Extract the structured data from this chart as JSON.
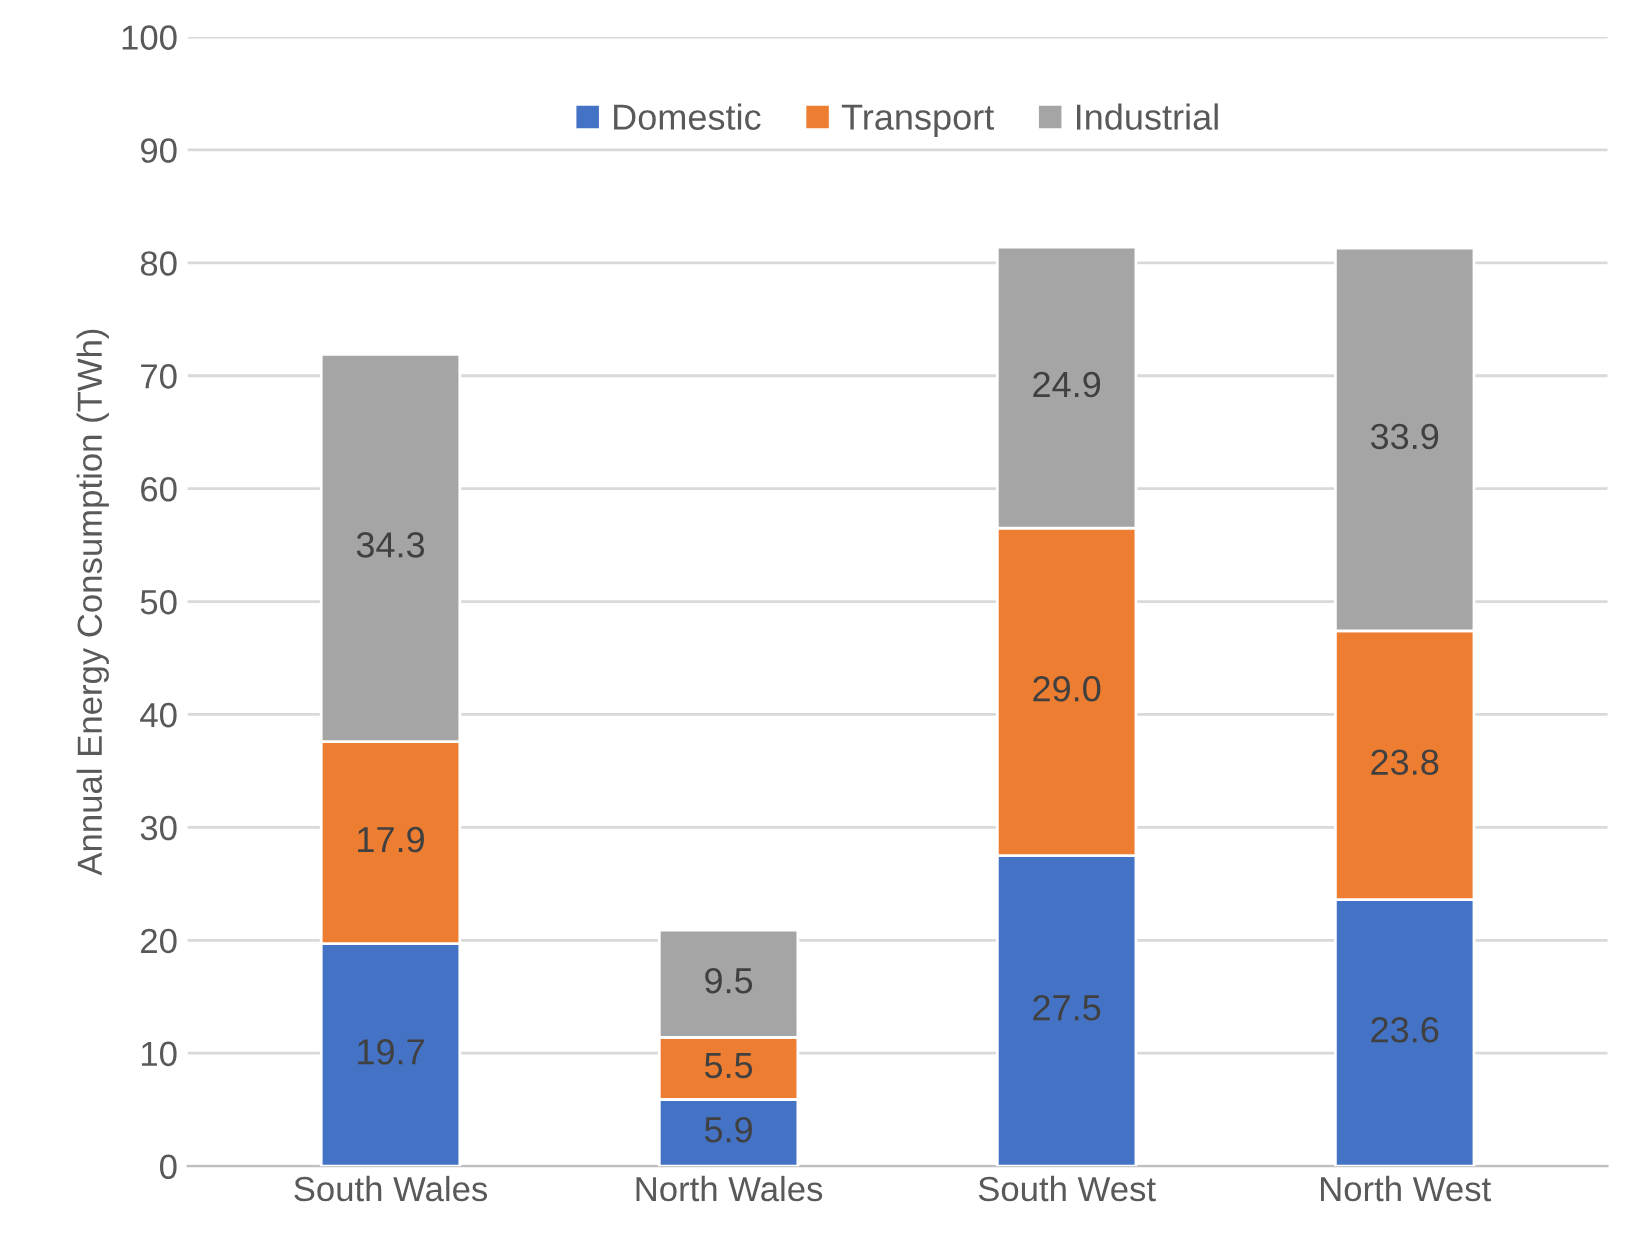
{
  "chart_data": {
    "type": "bar",
    "stacked": true,
    "ylabel": "Annual Energy Consumption (TWh)",
    "categories": [
      "South Wales",
      "North Wales",
      "South West",
      "North West"
    ],
    "series": [
      {
        "name": "Domestic",
        "color": "#4472c4",
        "values": [
          19.7,
          5.9,
          27.5,
          23.6
        ],
        "value_labels": [
          "19.7",
          "5.9",
          "27.5",
          "23.6"
        ]
      },
      {
        "name": "Transport",
        "color": "#ed7d31",
        "values": [
          17.9,
          5.5,
          29.0,
          23.8
        ],
        "value_labels": [
          "17.9",
          "5.5",
          "29.0",
          "23.8"
        ]
      },
      {
        "name": "Industrial",
        "color": "#a5a5a5",
        "values": [
          34.3,
          9.5,
          24.9,
          33.9
        ],
        "value_labels": [
          "34.3",
          "9.5",
          "24.9",
          "33.9"
        ]
      }
    ],
    "ylim": [
      0,
      100
    ],
    "yticks": [
      0,
      10,
      20,
      30,
      40,
      50,
      60,
      70,
      80,
      90,
      100
    ],
    "grid": "y",
    "legend": "top"
  }
}
